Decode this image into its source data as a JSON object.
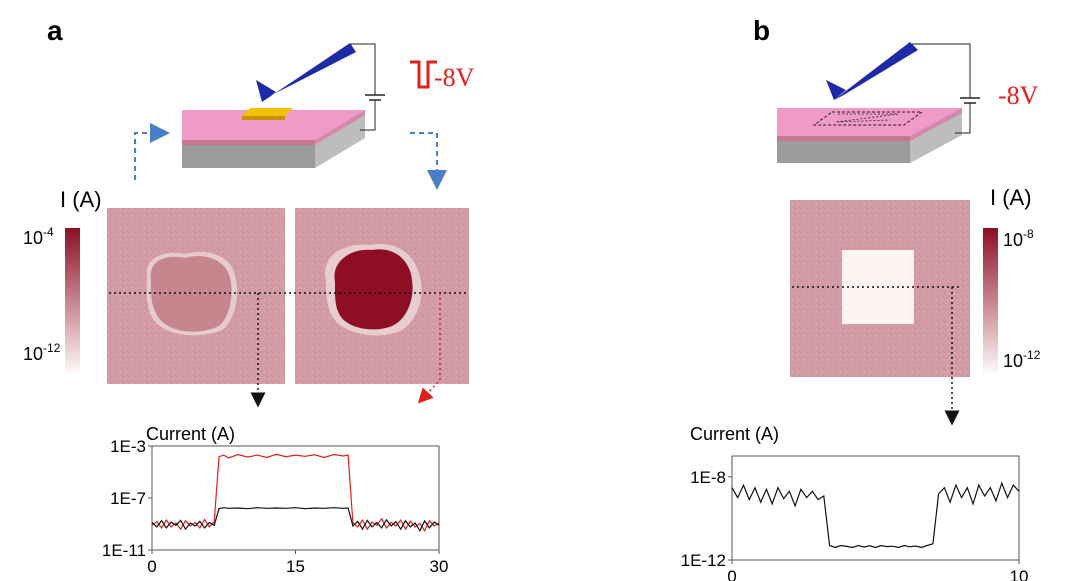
{
  "panel_a": {
    "label": "a",
    "voltage": "-8V",
    "colorbar": {
      "title": "I (A)",
      "top_base": "10",
      "top_exp": "-4",
      "bottom_base": "10",
      "bottom_exp": "-12"
    },
    "pulse_color": "#e0201c"
  },
  "panel_b": {
    "label": "b",
    "voltage": "-8V",
    "colorbar": {
      "title": "I (A)",
      "top_base": "10",
      "top_exp": "-8",
      "bottom_base": "10",
      "bottom_exp": "-12"
    }
  },
  "colors": {
    "map_base": "#d39ca4",
    "map_dark": "#8e0f24",
    "map_light": "#fbf4f3",
    "sample_top": "#f09ac8",
    "sample_side": "#9a9a9a",
    "tip": "#1d2aa8",
    "electrode": "#e4b000",
    "arrow_blue": "#4a7fc8",
    "arrow_red": "#e0201c",
    "line_black": "#111111",
    "line_red": "#e0201c"
  },
  "chart_data": [
    {
      "type": "line",
      "title": "Current (A)",
      "xlabel": "",
      "ylabel": "Current (A)",
      "yscale": "log",
      "xlim": [
        0,
        30
      ],
      "ylim": [
        1e-11,
        0.001
      ],
      "yticks": [
        "1E-3",
        "1E-7",
        "1E-11"
      ],
      "xticks": [
        "0",
        "15",
        "30"
      ],
      "x": [
        0,
        0.5,
        1,
        1.5,
        2,
        2.5,
        3,
        3.5,
        4,
        4.5,
        5,
        5.5,
        6,
        6.5,
        7,
        7.5,
        8,
        9,
        10,
        11,
        12,
        13,
        14,
        15,
        16,
        17,
        18,
        19,
        20,
        20.5,
        21,
        21.5,
        22,
        22.5,
        23,
        23.5,
        24,
        24.5,
        25,
        25.5,
        26,
        26.5,
        27,
        27.5,
        28,
        28.5,
        29,
        29.5,
        30
      ],
      "series": [
        {
          "color": "#e0201c",
          "values": [
            8e-10,
            1.5e-09,
            5e-10,
            2e-09,
            6e-10,
            1.2e-09,
            4e-10,
            1.8e-09,
            7e-10,
            1.3e-09,
            5e-10,
            2.2e-09,
            6e-10,
            1.5e-09,
            0.00015,
            0.0002,
            0.00012,
            0.00022,
            0.00014,
            0.0002,
            0.00013,
            0.00023,
            0.00015,
            0.0002,
            0.00016,
            0.00021,
            0.00013,
            0.00022,
            0.00017,
            0.0002,
            1.2e-09,
            6e-10,
            2e-09,
            4e-10,
            1.4e-09,
            8e-10,
            2.5e-09,
            5e-10,
            1.3e-09,
            7e-10,
            2e-09,
            4e-10,
            1.6e-09,
            6e-10,
            1.1e-09,
            3e-10,
            1.8e-09,
            7e-10,
            1.2e-09
          ]
        },
        {
          "color": "#111111",
          "values": [
            1.3e-09,
            6e-10,
            1.8e-09,
            5e-10,
            1.4e-09,
            8e-10,
            1.9e-09,
            4e-10,
            1.2e-09,
            7e-10,
            1.6e-09,
            5e-10,
            1.3e-09,
            8e-10,
            1.5e-08,
            1.8e-08,
            1.6e-08,
            1.7e-08,
            1.5e-08,
            1.8e-08,
            1.6e-08,
            1.7e-08,
            1.6e-08,
            1.8e-08,
            1.5e-08,
            1.7e-08,
            1.6e-08,
            1.8e-08,
            1.6e-08,
            1.7e-08,
            7e-10,
            1.6e-09,
            4e-10,
            1.9e-09,
            6e-10,
            1.3e-09,
            5e-10,
            2.1e-09,
            7e-10,
            1.5e-09,
            4e-10,
            1.8e-09,
            6e-10,
            1.2e-09,
            3e-10,
            1.7e-09,
            5e-10,
            1.4e-09,
            8e-10
          ]
        }
      ]
    },
    {
      "type": "line",
      "title": "Current (A)",
      "xlabel": "",
      "ylabel": "Current (A)",
      "yscale": "log",
      "xlim": [
        0,
        10
      ],
      "ylim": [
        1e-12,
        1e-07
      ],
      "yticks": [
        "1E-8",
        "1E-12"
      ],
      "xticks": [
        "0",
        "10"
      ],
      "x": [
        0,
        0.2,
        0.4,
        0.6,
        0.8,
        1,
        1.2,
        1.4,
        1.6,
        1.8,
        2,
        2.2,
        2.4,
        2.6,
        2.8,
        3,
        3.2,
        3.4,
        3.6,
        3.8,
        4,
        4.2,
        4.4,
        4.6,
        4.8,
        5,
        5.2,
        5.4,
        5.6,
        5.8,
        6,
        6.2,
        6.4,
        6.6,
        6.8,
        7,
        7.2,
        7.4,
        7.6,
        7.8,
        8,
        8.2,
        8.4,
        8.6,
        8.8,
        9,
        9.2,
        9.4,
        9.6,
        9.8,
        10
      ],
      "series": [
        {
          "color": "#111111",
          "values": [
            3e-09,
            1e-09,
            4e-09,
            8e-10,
            3e-09,
            6e-10,
            2.5e-09,
            5e-10,
            3e-09,
            9e-10,
            2e-09,
            4e-10,
            2.5e-09,
            1e-09,
            2e-09,
            8e-10,
            1.2e-09,
            5e-12,
            4e-12,
            5e-12,
            4.5e-12,
            4e-12,
            5e-12,
            4.2e-12,
            4.8e-12,
            4e-12,
            5e-12,
            4.4e-12,
            4.6e-12,
            4e-12,
            5e-12,
            4.3e-12,
            4.7e-12,
            4e-12,
            5e-12,
            6e-12,
            1.5e-09,
            3e-09,
            6e-10,
            4e-09,
            1e-09,
            3e-09,
            5e-10,
            4e-09,
            1.2e-09,
            3e-09,
            7e-10,
            5e-09,
            1e-09,
            4e-09,
            2e-09
          ]
        }
      ]
    }
  ]
}
